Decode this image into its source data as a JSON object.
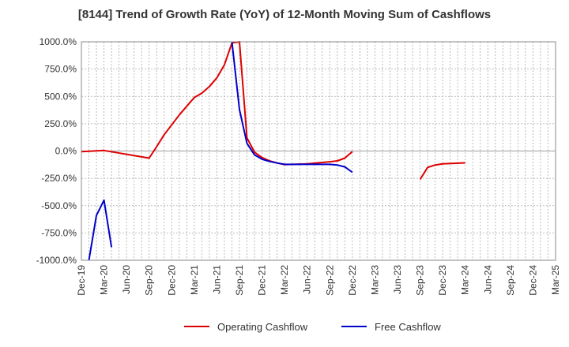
{
  "chart_data": {
    "type": "line",
    "title": "[8144]  Trend of Growth Rate (YoY) of 12-Month Moving Sum of Cashflows",
    "xlabel": "",
    "ylabel": "",
    "x_ticks": [
      "Dec-19",
      "Mar-20",
      "Jun-20",
      "Sep-20",
      "Dec-20",
      "Mar-21",
      "Jun-21",
      "Sep-21",
      "Dec-21",
      "Mar-22",
      "Jun-22",
      "Sep-22",
      "Dec-22",
      "Mar-23",
      "Jun-23",
      "Sep-23",
      "Dec-23",
      "Mar-24",
      "Jun-24",
      "Sep-24",
      "Dec-24",
      "Mar-25"
    ],
    "y_ticks": [
      "1000.0%",
      "750.0%",
      "500.0%",
      "250.0%",
      "0.0%",
      "-250.0%",
      "-500.0%",
      "-750.0%",
      "-1000.0%"
    ],
    "ylim": [
      -1000,
      1000
    ],
    "grid": true,
    "legend_position": "bottom",
    "series": [
      {
        "name": "Operating Cashflow",
        "color": "#dd0000",
        "points": [
          [
            "Dec-19",
            -5
          ],
          [
            "Mar-20",
            5
          ],
          [
            "Sep-20",
            -65
          ],
          [
            "Oct-20",
            40
          ],
          [
            "Nov-20",
            150
          ],
          [
            "Dec-20",
            240
          ],
          [
            "Jan-21",
            330
          ],
          [
            "Feb-21",
            410
          ],
          [
            "Mar-21",
            490
          ],
          [
            "Apr-21",
            530
          ],
          [
            "May-21",
            590
          ],
          [
            "Jun-21",
            670
          ],
          [
            "Jul-21",
            790
          ],
          [
            "Aug-21",
            990
          ],
          [
            "Aug-21b",
            1000
          ],
          [
            "Sep-21",
            1000
          ],
          [
            "Oct-21",
            120
          ],
          [
            "Nov-21",
            -10
          ],
          [
            "Dec-21",
            -60
          ],
          [
            "Jan-22",
            -90
          ],
          [
            "Feb-22",
            -110
          ],
          [
            "Mar-22",
            -125
          ],
          [
            "Jun-22",
            -118
          ],
          [
            "Sep-22",
            -98
          ],
          [
            "Oct-22",
            -90
          ],
          [
            "Nov-22",
            -65
          ],
          [
            "Dec-22",
            -5
          ],
          null,
          [
            "Sep-23",
            -260
          ],
          [
            "Oct-23",
            -150
          ],
          [
            "Nov-23",
            -128
          ],
          [
            "Dec-23",
            -118
          ],
          [
            "Mar-24",
            -108
          ]
        ]
      },
      {
        "name": "Free Cashflow",
        "color": "#0000cc",
        "points": [
          [
            "Jan-20",
            -1000
          ],
          [
            "Feb-20",
            -590
          ],
          [
            "Mar-20",
            -450
          ],
          [
            "Apr-20",
            -880
          ],
          null,
          [
            "Aug-21",
            1000
          ],
          [
            "Sep-21",
            380
          ],
          [
            "Oct-21",
            70
          ],
          [
            "Nov-21",
            -35
          ],
          [
            "Dec-21",
            -75
          ],
          [
            "Jan-22",
            -95
          ],
          [
            "Feb-22",
            -110
          ],
          [
            "Mar-22",
            -122
          ],
          [
            "Jun-22",
            -122
          ],
          [
            "Sep-22",
            -122
          ],
          [
            "Oct-22",
            -128
          ],
          [
            "Nov-22",
            -145
          ],
          [
            "Dec-22",
            -195
          ]
        ]
      }
    ]
  }
}
